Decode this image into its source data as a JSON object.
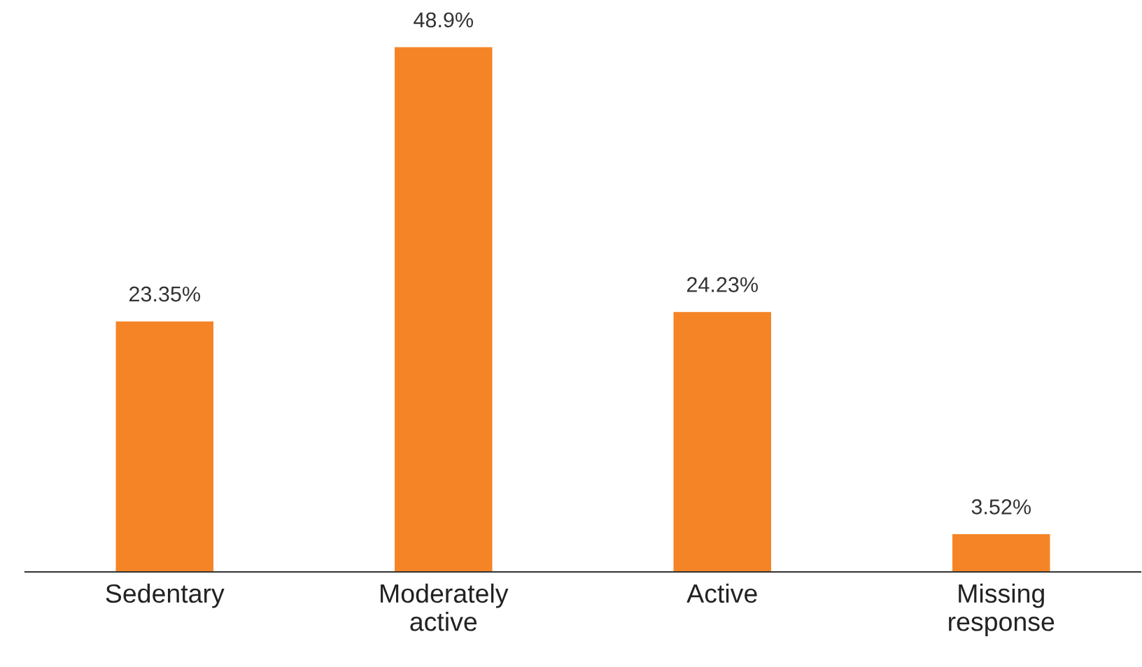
{
  "chart_data": {
    "type": "bar",
    "categories": [
      "Sedentary",
      "Moderately\nactive",
      "Active",
      "Missing\nresponse"
    ],
    "values": [
      23.35,
      48.9,
      24.23,
      3.52
    ],
    "value_labels": [
      "23.35%",
      "48.9%",
      "24.23%",
      "3.52%"
    ],
    "color": "#f58426",
    "grid": false,
    "legend": false
  }
}
